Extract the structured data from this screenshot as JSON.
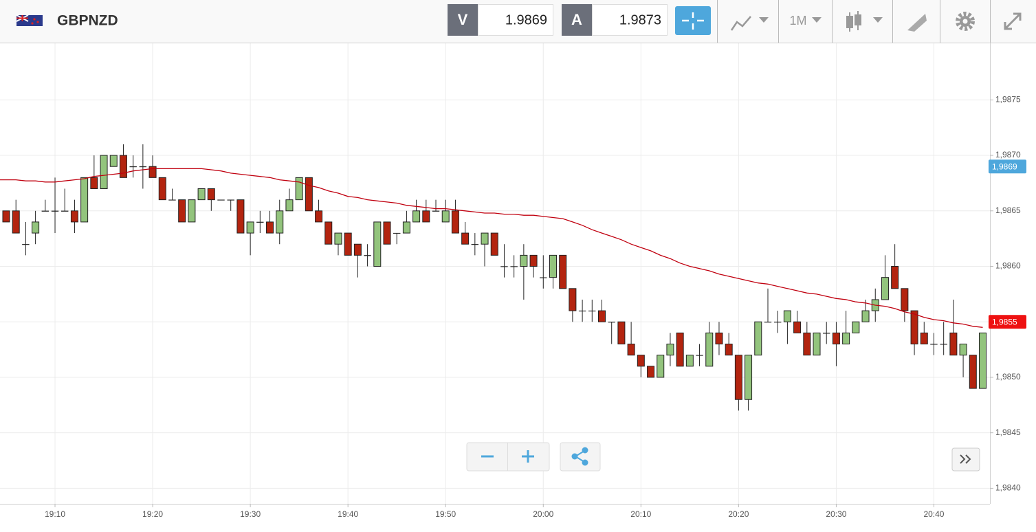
{
  "header": {
    "pair": "GBPNZD",
    "bid_label": "V",
    "bid": "1.9869",
    "ask_label": "A",
    "ask": "1.9873",
    "timeframe": "1M"
  },
  "chart_data": {
    "type": "candlestick",
    "categories": [
      null,
      null,
      null,
      null,
      null,
      "19:10",
      null,
      null,
      null,
      null,
      null,
      null,
      null,
      null,
      null,
      "19:20",
      null,
      null,
      null,
      null,
      null,
      null,
      null,
      null,
      null,
      "19:30",
      null,
      null,
      null,
      null,
      null,
      null,
      null,
      null,
      null,
      "19:40",
      null,
      null,
      null,
      null,
      null,
      null,
      null,
      null,
      null,
      "19:50",
      null,
      null,
      null,
      null,
      null,
      null,
      null,
      null,
      null,
      "20:00",
      null,
      null,
      null,
      null,
      null,
      null,
      null,
      null,
      null,
      "20:10",
      null,
      null,
      null,
      null,
      null,
      null,
      null,
      null,
      null,
      "20:20",
      null,
      null,
      null,
      null,
      null,
      null,
      null,
      null,
      null,
      "20:30",
      null,
      null,
      null,
      null,
      null,
      null,
      null,
      null,
      null,
      "20:40",
      null,
      null,
      null,
      null,
      null
    ],
    "open": [
      1.9865,
      1.9865,
      1.9862,
      1.9863,
      1.9865,
      1.9865,
      1.9865,
      1.9865,
      1.9864,
      1.9868,
      1.9867,
      1.9869,
      1.987,
      1.9869,
      1.9869,
      1.9869,
      1.9868,
      1.9866,
      1.9866,
      1.9864,
      1.9866,
      1.9867,
      1.9866,
      1.9866,
      1.9866,
      1.9863,
      1.9864,
      1.9864,
      1.9863,
      1.9865,
      1.9866,
      1.9868,
      1.9865,
      1.9864,
      1.9862,
      1.9863,
      1.9862,
      1.9861,
      1.986,
      1.9864,
      1.9863,
      1.9863,
      1.9864,
      1.9865,
      1.9865,
      1.9864,
      1.9865,
      1.9863,
      1.9862,
      1.9862,
      1.9863,
      1.986,
      1.986,
      1.986,
      1.9861,
      1.9859,
      1.9859,
      1.9861,
      1.9858,
      1.9856,
      1.9856,
      1.9856,
      1.9855,
      1.9855,
      1.9853,
      1.9852,
      1.9851,
      1.985,
      1.9852,
      1.9854,
      1.9851,
      1.9852,
      1.9851,
      1.9854,
      1.9853,
      1.9852,
      1.9848,
      1.9852,
      1.9855,
      1.9855,
      1.9855,
      1.9855,
      1.9854,
      1.9852,
      1.9854,
      1.9854,
      1.9853,
      1.9854,
      1.9855,
      1.9856,
      1.9857,
      1.986,
      1.9858,
      1.9856,
      1.9854,
      1.9853,
      1.9853,
      1.9854,
      1.9852,
      1.9852,
      1.9849
    ],
    "high": [
      1.9865,
      1.9866,
      1.9864,
      1.9865,
      1.9866,
      1.9868,
      1.9867,
      1.9866,
      1.9868,
      1.987,
      1.987,
      1.987,
      1.9871,
      1.987,
      1.9871,
      1.987,
      1.9868,
      1.9867,
      1.9866,
      1.9866,
      1.9867,
      1.9867,
      1.9866,
      1.9866,
      1.9866,
      1.9864,
      1.9865,
      1.9865,
      1.9866,
      1.9867,
      1.9868,
      1.9868,
      1.9866,
      1.9864,
      1.9863,
      1.9863,
      1.9862,
      1.9862,
      1.9864,
      1.9864,
      1.9863,
      1.9865,
      1.9866,
      1.9866,
      1.9866,
      1.9866,
      1.9866,
      1.9864,
      1.9863,
      1.9863,
      1.9863,
      1.9862,
      1.9861,
      1.9862,
      1.9861,
      1.9861,
      1.9861,
      1.9861,
      1.9858,
      1.9857,
      1.9857,
      1.9857,
      1.9855,
      1.9855,
      1.9855,
      1.9852,
      1.9851,
      1.9852,
      1.9854,
      1.9854,
      1.9852,
      1.9853,
      1.9855,
      1.9855,
      1.9854,
      1.9852,
      1.9852,
      1.9855,
      1.9858,
      1.9856,
      1.9856,
      1.9856,
      1.9855,
      1.9854,
      1.9855,
      1.9855,
      1.9856,
      1.9855,
      1.9857,
      1.9858,
      1.9861,
      1.9862,
      1.9858,
      1.9856,
      1.9855,
      1.9854,
      1.9855,
      1.9857,
      1.9853,
      1.9852,
      1.9854
    ],
    "low": [
      1.9864,
      1.9863,
      1.9861,
      1.9862,
      1.9865,
      1.9863,
      1.9865,
      1.9863,
      1.9864,
      1.9867,
      1.9867,
      1.9869,
      1.9868,
      1.9868,
      1.9867,
      1.9868,
      1.9866,
      1.9866,
      1.9864,
      1.9864,
      1.9866,
      1.9865,
      1.9866,
      1.9865,
      1.9863,
      1.9861,
      1.9863,
      1.9863,
      1.9862,
      1.9865,
      1.9866,
      1.9865,
      1.9864,
      1.9862,
      1.9861,
      1.9861,
      1.9859,
      1.986,
      1.986,
      1.9862,
      1.9862,
      1.9863,
      1.9864,
      1.9864,
      1.9865,
      1.9864,
      1.9863,
      1.9862,
      1.9861,
      1.986,
      1.9861,
      1.9859,
      1.9859,
      1.9857,
      1.9859,
      1.9858,
      1.9858,
      1.9858,
      1.9855,
      1.9855,
      1.9855,
      1.9855,
      1.9853,
      1.9853,
      1.9852,
      1.985,
      1.985,
      1.985,
      1.9851,
      1.9851,
      1.9851,
      1.9851,
      1.9851,
      1.9852,
      1.9852,
      1.9847,
      1.9847,
      1.9852,
      1.9855,
      1.9854,
      1.9853,
      1.9854,
      1.9852,
      1.9852,
      1.9853,
      1.9851,
      1.9853,
      1.9854,
      1.9855,
      1.9855,
      1.9857,
      1.9858,
      1.9855,
      1.9852,
      1.9853,
      1.9852,
      1.9852,
      1.9852,
      1.985,
      1.9849,
      1.9849
    ],
    "close": [
      1.9864,
      1.9863,
      1.9862,
      1.9864,
      1.9865,
      1.9865,
      1.9865,
      1.9864,
      1.9868,
      1.9867,
      1.987,
      1.987,
      1.9868,
      1.9869,
      1.9869,
      1.9868,
      1.9866,
      1.9866,
      1.9864,
      1.9866,
      1.9867,
      1.9866,
      1.9866,
      1.9866,
      1.9863,
      1.9864,
      1.9864,
      1.9863,
      1.9865,
      1.9866,
      1.9868,
      1.9865,
      1.9864,
      1.9862,
      1.9863,
      1.9861,
      1.9861,
      1.9861,
      1.9864,
      1.9862,
      1.9863,
      1.9864,
      1.9865,
      1.9864,
      1.9865,
      1.9865,
      1.9863,
      1.9862,
      1.9862,
      1.9863,
      1.9861,
      1.986,
      1.986,
      1.9861,
      1.986,
      1.9859,
      1.9861,
      1.9858,
      1.9856,
      1.9856,
      1.9856,
      1.9855,
      1.9855,
      1.9853,
      1.9852,
      1.9851,
      1.985,
      1.9852,
      1.9853,
      1.9851,
      1.9852,
      1.9852,
      1.9854,
      1.9853,
      1.9852,
      1.9848,
      1.9852,
      1.9855,
      1.9855,
      1.9855,
      1.9856,
      1.9854,
      1.9852,
      1.9854,
      1.9854,
      1.9853,
      1.9854,
      1.9855,
      1.9856,
      1.9857,
      1.9859,
      1.9858,
      1.9856,
      1.9853,
      1.9853,
      1.9853,
      1.9853,
      1.9852,
      1.9853,
      1.9849,
      1.9854
    ],
    "up_color": "#93c47d",
    "down_color": "#b3240f",
    "ma": {
      "color": "#c0000f",
      "values": [
        1.98678,
        1.98678,
        1.98677,
        1.98677,
        1.98676,
        1.98676,
        1.98677,
        1.98678,
        1.98679,
        1.98681,
        1.98682,
        1.98683,
        1.98684,
        1.98686,
        1.98687,
        1.98688,
        1.98688,
        1.98688,
        1.98688,
        1.98688,
        1.98688,
        1.98687,
        1.98686,
        1.98684,
        1.98683,
        1.98682,
        1.98681,
        1.9868,
        1.98678,
        1.98677,
        1.98676,
        1.98673,
        1.98671,
        1.98668,
        1.98666,
        1.98663,
        1.98662,
        1.9866,
        1.98659,
        1.98658,
        1.98657,
        1.98655,
        1.98654,
        1.98653,
        1.98652,
        1.98652,
        1.98651,
        1.9865,
        1.98649,
        1.98648,
        1.98648,
        1.98647,
        1.98647,
        1.98646,
        1.98646,
        1.98645,
        1.98644,
        1.98643,
        1.9864,
        1.98637,
        1.98633,
        1.9863,
        1.98627,
        1.98624,
        1.9862,
        1.98617,
        1.98614,
        1.9861,
        1.98607,
        1.98603,
        1.986,
        1.98598,
        1.98596,
        1.98593,
        1.98591,
        1.98589,
        1.98587,
        1.98585,
        1.98584,
        1.98582,
        1.9858,
        1.98578,
        1.98576,
        1.98575,
        1.98573,
        1.98571,
        1.9857,
        1.98568,
        1.98567,
        1.98565,
        1.98564,
        1.98562,
        1.98559,
        1.98557,
        1.98554,
        1.98552,
        1.98551,
        1.98549,
        1.98548,
        1.98546,
        1.98545
      ]
    },
    "ylim": [
      1.98386,
      1.98801
    ],
    "yticks": [
      {
        "value": 1.984,
        "label": "1,9840"
      },
      {
        "value": 1.9845,
        "label": "1,9845"
      },
      {
        "value": 1.985,
        "label": "1,9850"
      },
      {
        "value": 1.9855,
        "label": "1,9855"
      },
      {
        "value": 1.986,
        "label": "1,9860"
      },
      {
        "value": 1.9865,
        "label": "1,9865"
      },
      {
        "value": 1.987,
        "label": "1,9870"
      },
      {
        "value": 1.9875,
        "label": "1,9875"
      }
    ],
    "price_labels": [
      {
        "value": 1.9869,
        "label": "1,9869",
        "color": "#4ea7dc"
      },
      {
        "value": 1.9855,
        "label": "1,9855",
        "color": "#ee1111"
      }
    ],
    "grid": true
  }
}
